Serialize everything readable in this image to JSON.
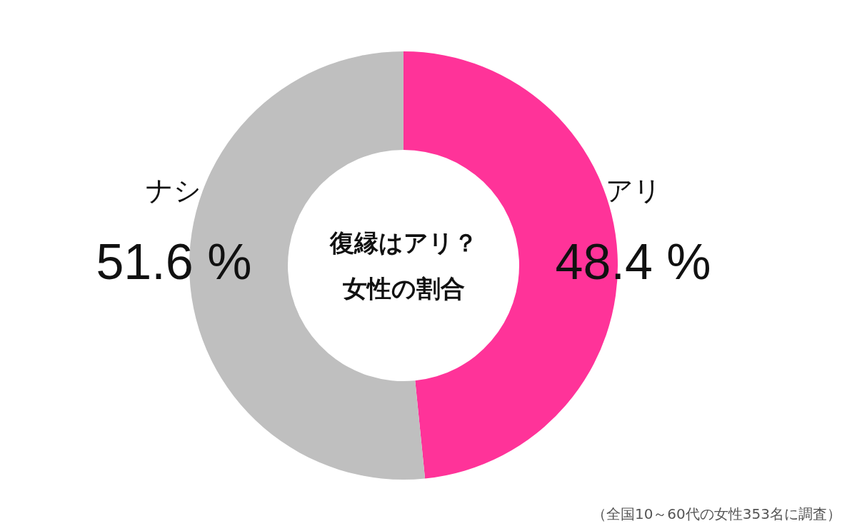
{
  "chart_data": {
    "type": "donut",
    "title": "復縁はアリ？女性の割合",
    "categories": [
      "アリ",
      "ナシ"
    ],
    "values": [
      48.4,
      51.6
    ],
    "colors": [
      "#ff3399",
      "#bfbfbf"
    ],
    "value_labels": [
      "48.4 %",
      "51.6 %"
    ],
    "annotations": [
      "（全国10～60代の女性353名に調査）"
    ]
  }
}
